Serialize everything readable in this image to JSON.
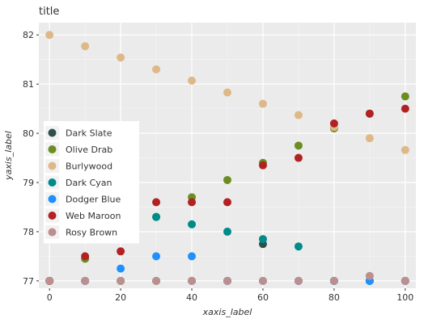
{
  "chart_data": {
    "type": "scatter",
    "title": "title",
    "xlabel": "xaxis_label",
    "ylabel": "yaxis_label",
    "xlim": [
      -3,
      103
    ],
    "ylim": [
      76.85,
      82.25
    ],
    "xticks": [
      0,
      20,
      40,
      60,
      80,
      100
    ],
    "yticks": [
      77,
      78,
      79,
      80,
      81,
      82
    ],
    "grid": true,
    "legend": "left",
    "series": [
      {
        "name": "Dark Slate",
        "color": "#2f4f4f",
        "x": [
          0,
          10,
          20,
          30,
          40,
          50,
          60,
          70,
          80,
          90,
          100
        ],
        "y": [
          77.0,
          77.0,
          77.0,
          77.0,
          77.0,
          77.0,
          77.75,
          77.0,
          77.0,
          77.0,
          77.0
        ]
      },
      {
        "name": "Olive Drab",
        "color": "#6b8e23",
        "x": [
          0,
          10,
          20,
          30,
          40,
          50,
          60,
          70,
          80,
          90,
          100
        ],
        "y": [
          77.0,
          77.45,
          77.9,
          78.3,
          78.7,
          79.05,
          79.4,
          79.75,
          80.1,
          80.4,
          80.75
        ]
      },
      {
        "name": "Burlywood",
        "color": "#deb887",
        "x": [
          0,
          10,
          20,
          30,
          40,
          50,
          60,
          70,
          80,
          90,
          100
        ],
        "y": [
          82.0,
          81.77,
          81.54,
          81.3,
          81.07,
          80.83,
          80.6,
          80.37,
          80.13,
          79.9,
          79.66
        ]
      },
      {
        "name": "Dark Cyan",
        "color": "#008b8b",
        "x": [
          0,
          10,
          20,
          30,
          40,
          50,
          60,
          70,
          80,
          90,
          100
        ],
        "y": [
          78.3,
          78.3,
          78.3,
          78.3,
          78.15,
          78.0,
          77.85,
          77.7,
          77.0,
          77.0,
          77.0
        ]
      },
      {
        "name": "Dodger Blue",
        "color": "#1e90ff",
        "x": [
          0,
          10,
          20,
          30,
          40,
          50,
          60,
          70,
          80,
          90,
          100
        ],
        "y": [
          77.0,
          77.0,
          77.25,
          77.5,
          77.5,
          77.0,
          77.0,
          77.0,
          77.0,
          77.0,
          77.0
        ]
      },
      {
        "name": "Web Maroon",
        "color": "#b22222",
        "x": [
          0,
          10,
          20,
          30,
          40,
          50,
          60,
          70,
          80,
          90,
          100
        ],
        "y": [
          77.0,
          77.5,
          77.6,
          78.6,
          78.6,
          78.6,
          79.35,
          79.5,
          80.2,
          80.4,
          80.5
        ]
      },
      {
        "name": "Rosy Brown",
        "color": "#bc8f8f",
        "x": [
          0,
          10,
          20,
          30,
          40,
          50,
          60,
          70,
          80,
          90,
          100
        ],
        "y": [
          77.0,
          77.0,
          77.0,
          77.0,
          77.0,
          77.0,
          77.0,
          77.0,
          77.0,
          77.1,
          77.0
        ]
      }
    ]
  }
}
